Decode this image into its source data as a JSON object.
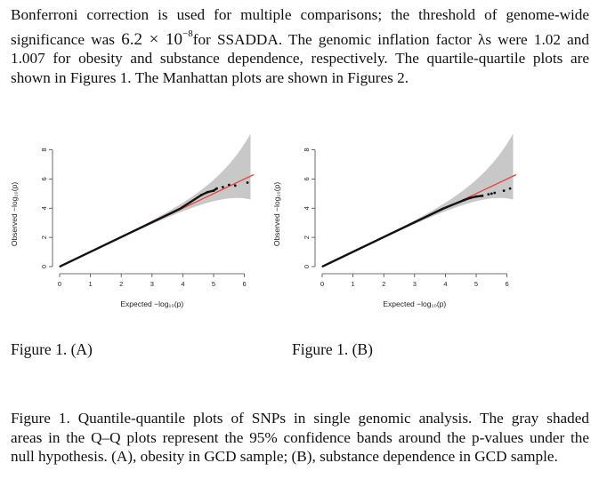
{
  "paragraph": {
    "line1": "Bonferroni correction is used for multiple comparisons; the threshold of genome-wide",
    "line2_a": "significance was",
    "threshold_base": "6.2 × 10",
    "threshold_exp": "−8",
    "line2_b": "for SSADDA. The genomic inflation factor λs were 1.02 and",
    "line3": "1.007 for obesity and substance dependence, respectively. The quartile-quartile plots are",
    "line4": "shown in Figures 1.  The Manhattan plots are shown in Figures 2."
  },
  "figures": [
    {
      "label": "Figure 1. (A)",
      "ylabel": "Observed −log₁₀(p)",
      "xlabel": "Expected −log₁₀(p)",
      "x_ticks": [
        "0",
        "1",
        "2",
        "3",
        "4",
        "5",
        "6"
      ],
      "y_ticks": [
        "0",
        "2",
        "4",
        "6",
        "8"
      ]
    },
    {
      "label": "Figure 1. (B)",
      "ylabel": "Observed −log₁₀(p)",
      "xlabel": "Expected −log₁₀(p)",
      "x_ticks": [
        "0",
        "1",
        "2",
        "3",
        "4",
        "5",
        "6"
      ],
      "y_ticks": [
        "0",
        "2",
        "4",
        "6",
        "8"
      ]
    }
  ],
  "chart_data": [
    {
      "type": "scatter",
      "title": "",
      "xlabel": "Expected −log₁₀(p)",
      "ylabel": "Observed −log₁₀(p)",
      "xlim": [
        0,
        6.3
      ],
      "ylim": [
        0,
        8.4
      ],
      "reference_line": "y = x",
      "reference_line_color": "#e8453c",
      "confidence_band": "95%",
      "confidence_band_color": "#c8c8c8",
      "tail_points": [
        [
          4.6,
          4.9
        ],
        [
          4.8,
          5.1
        ],
        [
          5.0,
          5.2
        ],
        [
          5.1,
          5.35
        ],
        [
          5.3,
          5.45
        ],
        [
          5.5,
          5.6
        ],
        [
          5.7,
          5.55
        ],
        [
          6.1,
          5.75
        ]
      ]
    },
    {
      "type": "scatter",
      "title": "",
      "xlabel": "Expected −log₁₀(p)",
      "ylabel": "Observed −log₁₀(p)",
      "xlim": [
        0,
        6.3
      ],
      "ylim": [
        0,
        8.4
      ],
      "reference_line": "y = x",
      "reference_line_color": "#e8453c",
      "confidence_band": "95%",
      "confidence_band_color": "#c8c8c8",
      "tail_points": [
        [
          4.6,
          4.55
        ],
        [
          4.8,
          4.7
        ],
        [
          5.0,
          4.8
        ],
        [
          5.2,
          4.85
        ],
        [
          5.4,
          4.95
        ],
        [
          5.5,
          5.0
        ],
        [
          5.6,
          5.05
        ],
        [
          5.9,
          5.2
        ],
        [
          6.1,
          5.35
        ]
      ]
    }
  ],
  "caption": {
    "line1": "Figure 1. Quantile-quantile plots of SNPs in single genomic analysis. The gray shaded",
    "line2": "areas in the Q–Q plots represent the 95% confidence bands around the p-values under the",
    "line3": "null hypothesis. (A), obesity in GCD sample; (B), substance dependence in GCD sample."
  }
}
